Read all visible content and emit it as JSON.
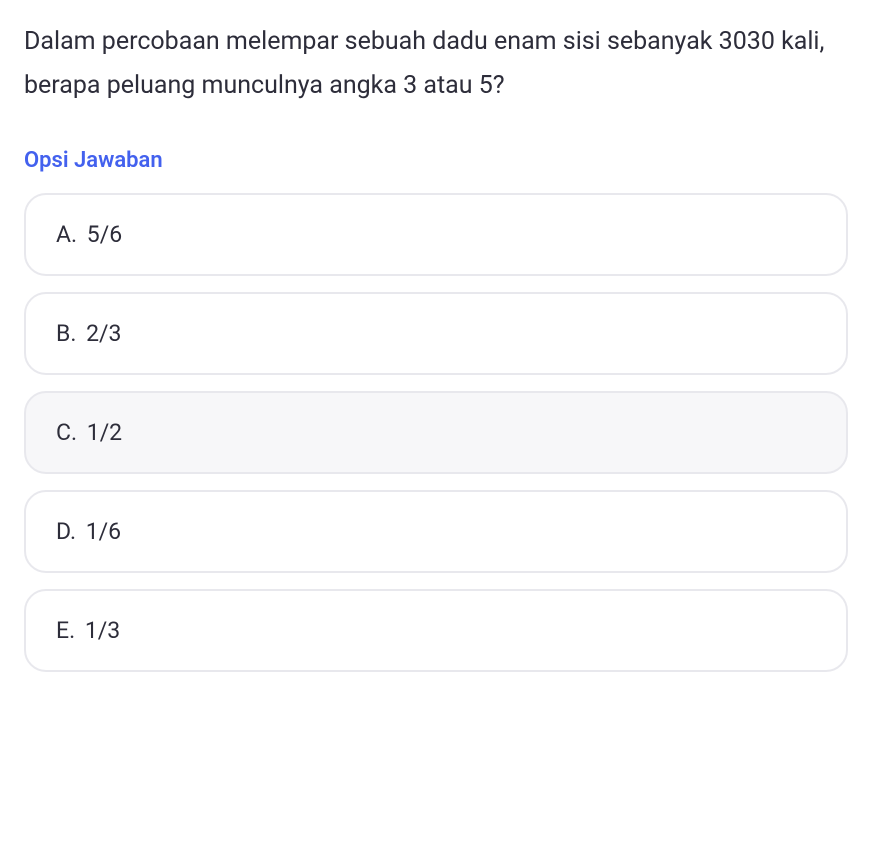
{
  "question": {
    "text": "Dalam percobaan melempar sebuah dadu enam sisi sebanyak 3030 kali, berapa peluang munculnya angka 3 atau 5?"
  },
  "options_label": "Opsi Jawaban",
  "options": [
    {
      "letter": "A.",
      "text": "5/6",
      "selected": false
    },
    {
      "letter": "B.",
      "text": "2/3",
      "selected": false
    },
    {
      "letter": "C.",
      "text": "1/2",
      "selected": true
    },
    {
      "letter": "D.",
      "text": "1/6",
      "selected": false
    },
    {
      "letter": "E.",
      "text": "1/3",
      "selected": false
    }
  ],
  "colors": {
    "text_primary": "#2d2d3a",
    "accent": "#4361ee",
    "border": "#e8e8ed",
    "selected_bg": "#f7f7f9",
    "background": "#ffffff"
  }
}
